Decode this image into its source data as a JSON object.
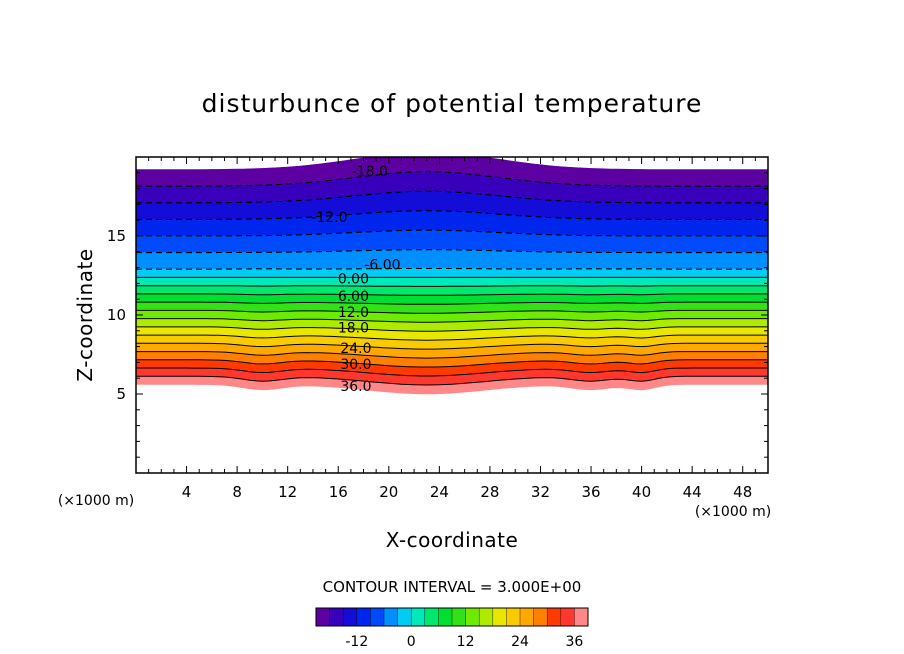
{
  "chart_data": {
    "type": "contour",
    "title": "disturbunce of potential temperature",
    "xlabel": "X-coordinate",
    "ylabel": "Z-coordinate",
    "x_unit_left": "(×1000 m)",
    "x_unit_right": "(×1000 m)",
    "xlim": [
      0,
      50
    ],
    "ylim": [
      0,
      20
    ],
    "x_ticks": [
      4,
      8,
      12,
      16,
      20,
      24,
      28,
      32,
      36,
      40,
      44,
      48
    ],
    "y_ticks": [
      5,
      10,
      15
    ],
    "contour_interval_text": "CONTOUR INTERVAL = 3.000E+00",
    "contour_interval": 3.0,
    "value_range": [
      -21,
      39
    ],
    "contour_labels": [
      {
        "text": "-18.0",
        "x": 18.5,
        "y": 19.1
      },
      {
        "text": "-12.0",
        "x": 15.3,
        "y": 16.2
      },
      {
        "text": "-6.00",
        "x": 19.5,
        "y": 13.2
      },
      {
        "text": "0.00",
        "x": 17.2,
        "y": 12.3
      },
      {
        "text": "6.00",
        "x": 17.2,
        "y": 11.2
      },
      {
        "text": "12.0",
        "x": 17.2,
        "y": 10.2
      },
      {
        "text": "18.0",
        "x": 17.2,
        "y": 9.2
      },
      {
        "text": "24.0",
        "x": 17.4,
        "y": 7.9
      },
      {
        "text": "30.0",
        "x": 17.4,
        "y": 6.9
      },
      {
        "text": "36.0",
        "x": 17.4,
        "y": 5.5
      }
    ],
    "colorbar": {
      "ticks": [
        -12,
        0,
        12,
        24,
        36
      ],
      "tick_labels": [
        "-12",
        "0",
        "12",
        "24",
        "36"
      ]
    }
  }
}
